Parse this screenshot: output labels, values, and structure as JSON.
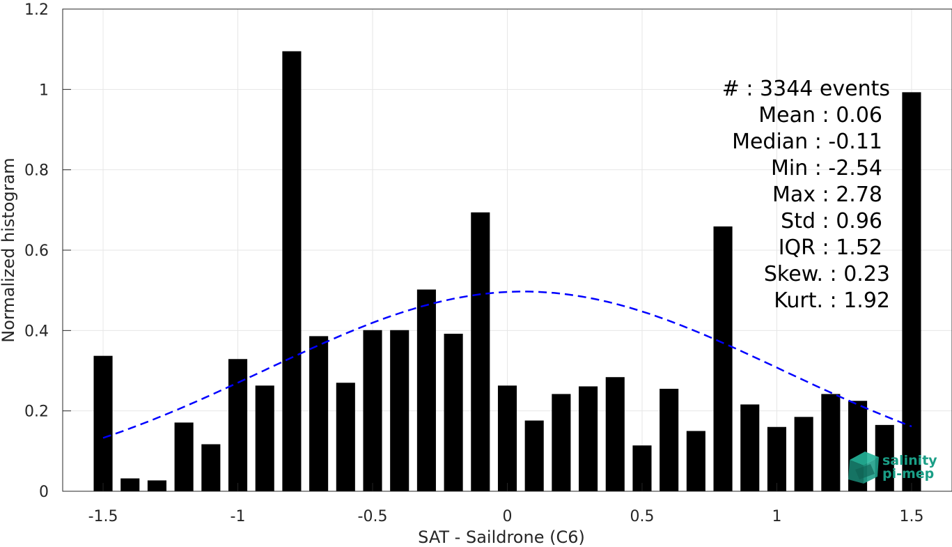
{
  "chart_data": {
    "type": "bar",
    "xlabel": "SAT - Saildrone (C6)",
    "ylabel": "Normalized histogram",
    "xlim": [
      -1.65,
      1.65
    ],
    "ylim": [
      0,
      1.2
    ],
    "x_ticks": [
      "-1.5",
      "-1",
      "-0.5",
      "0",
      "0.5",
      "1",
      "1.5"
    ],
    "y_ticks": [
      "0",
      "0.2",
      "0.4",
      "0.6",
      "0.8",
      "1",
      "1.2"
    ],
    "grid": true,
    "bar_color": "#000000",
    "fit_color": "#0000ff",
    "x": [
      -1.5,
      -1.4,
      -1.3,
      -1.2,
      -1.1,
      -1.0,
      -0.9,
      -0.8,
      -0.7,
      -0.6,
      -0.5,
      -0.4,
      -0.3,
      -0.2,
      -0.1,
      0.0,
      0.1,
      0.2,
      0.3,
      0.4,
      0.5,
      0.6,
      0.7,
      0.8,
      0.9,
      1.0,
      1.1,
      1.2,
      1.3,
      1.4,
      1.5
    ],
    "values": [
      0.337,
      0.032,
      0.027,
      0.171,
      0.117,
      0.329,
      0.263,
      1.095,
      0.386,
      0.27,
      0.401,
      0.401,
      0.502,
      0.392,
      0.694,
      0.263,
      0.176,
      0.242,
      0.261,
      0.284,
      0.114,
      0.255,
      0.15,
      0.659,
      0.216,
      0.16,
      0.185,
      0.242,
      0.225,
      0.165,
      0.993
    ],
    "fit_curve": {
      "style": "dashed",
      "type": "gaussian",
      "mean": 0.06,
      "std": 0.96,
      "x_range": [
        -1.5,
        1.5
      ],
      "peak": 0.497
    },
    "annotations": [
      "#  : 3344 events",
      "Mean : 0.06",
      "Median : -0.11",
      "Min : -2.54",
      "Max : 2.78",
      "Std : 0.96",
      "IQR : 1.52",
      "Skew. : 0.23",
      "Kurt. : 1.92"
    ]
  },
  "logo": {
    "line1": "salinity",
    "line2": "pi-mep",
    "color": "#1a9e86"
  }
}
